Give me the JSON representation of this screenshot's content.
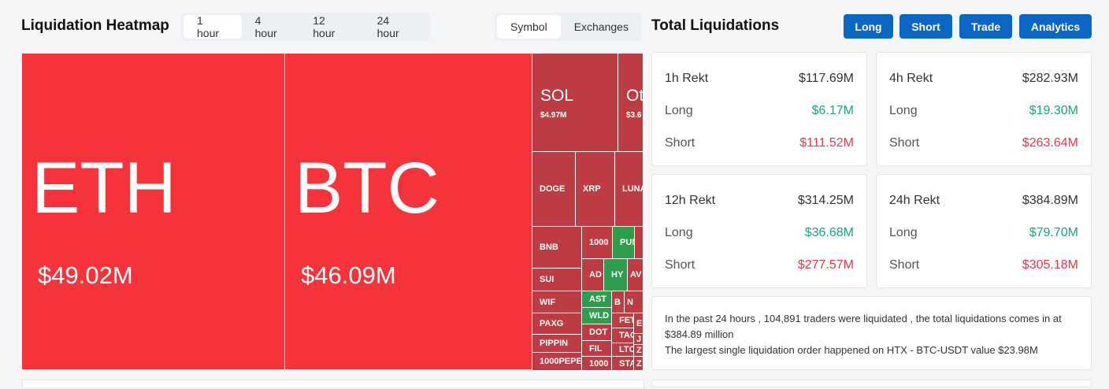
{
  "header": {
    "title": "Liquidation Heatmap",
    "time_tabs": [
      "1 hour",
      "4 hour",
      "12 hour",
      "24 hour"
    ],
    "view_tabs": [
      "Symbol",
      "Exchanges"
    ]
  },
  "treemap": {
    "tiles": [
      {
        "label": "ETH",
        "value": "$49.02M",
        "color": "#f5333a"
      },
      {
        "label": "BTC",
        "value": "$46.09M",
        "color": "#f5333a"
      },
      {
        "label": "SOL",
        "value": "$4.97M",
        "color": "#bd3b42"
      },
      {
        "label": "Ot",
        "value": "$3.6",
        "color": "#bd3b42"
      },
      {
        "label": "DOGE",
        "color": "#bd3b42"
      },
      {
        "label": "XRP",
        "color": "#bd3b42"
      },
      {
        "label": "LUNA",
        "color": "#bd3b42"
      },
      {
        "label": "BNB",
        "color": "#bd3b42"
      },
      {
        "label": "1000",
        "color": "#bd3b42"
      },
      {
        "label": "PUM",
        "color": "#2e9e4e"
      },
      {
        "label": "SUI",
        "color": "#bd3b42"
      },
      {
        "label": "AD",
        "color": "#bd3b42"
      },
      {
        "label": "HY",
        "color": "#2e9e4e"
      },
      {
        "label": "AV",
        "color": "#bd3b42"
      },
      {
        "label": "WIF",
        "color": "#bd3b42"
      },
      {
        "label": "AST",
        "color": "#2e9e4e"
      },
      {
        "label": "B",
        "color": "#bd3b42"
      },
      {
        "label": "N",
        "color": "#bd3b42"
      },
      {
        "label": "PAXG",
        "color": "#bd3b42"
      },
      {
        "label": "WLD",
        "color": "#2e9e4e"
      },
      {
        "label": "FET",
        "color": "#bd3b42"
      },
      {
        "label": "E",
        "color": "#bd3b42"
      },
      {
        "label": "PIPPIN",
        "color": "#bd3b42"
      },
      {
        "label": "DOT",
        "color": "#bd3b42"
      },
      {
        "label": "TAO",
        "color": "#bd3b42"
      },
      {
        "label": "J",
        "color": "#bd3b42"
      },
      {
        "label": "FIL",
        "color": "#bd3b42"
      },
      {
        "label": "LTC",
        "color": "#bd3b42"
      },
      {
        "label": "Z",
        "color": "#bd3b42"
      },
      {
        "label": "1000PEPE",
        "color": "#bd3b42"
      },
      {
        "label": "1000",
        "color": "#bd3b42"
      },
      {
        "label": "STA",
        "color": "#bd3b42"
      },
      {
        "label": "Z",
        "color": "#bd3b42"
      }
    ]
  },
  "totals": {
    "title": "Total Liquidations",
    "buttons": [
      "Long",
      "Short",
      "Trade",
      "Analytics"
    ],
    "cards": [
      {
        "title": "1h Rekt",
        "total": "$117.69M",
        "long_label": "Long",
        "long": "$6.17M",
        "short_label": "Short",
        "short": "$111.52M"
      },
      {
        "title": "4h Rekt",
        "total": "$282.93M",
        "long_label": "Long",
        "long": "$19.30M",
        "short_label": "Short",
        "short": "$263.64M"
      },
      {
        "title": "12h Rekt",
        "total": "$314.25M",
        "long_label": "Long",
        "long": "$36.68M",
        "short_label": "Short",
        "short": "$277.57M"
      },
      {
        "title": "24h Rekt",
        "total": "$384.89M",
        "long_label": "Long",
        "long": "$79.70M",
        "short_label": "Short",
        "short": "$305.18M"
      }
    ],
    "summary": [
      "In the past 24 hours , 104,891 traders were liquidated , the total liquidations comes in at $384.89 million",
      "The largest single liquidation order happened on HTX - BTC-USDT value $23.98M"
    ]
  }
}
